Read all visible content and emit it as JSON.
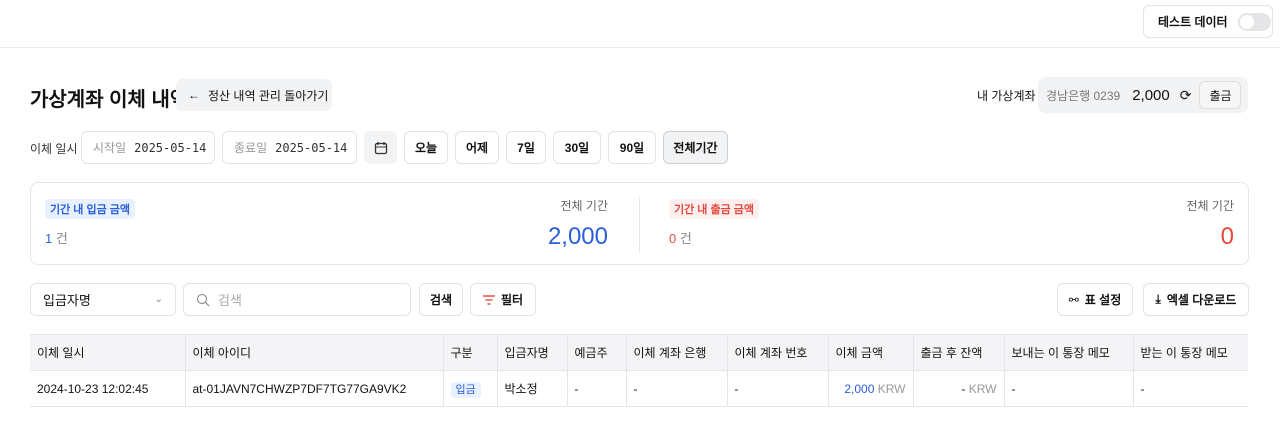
{
  "header": {
    "test_data_label": "테스트 데이터",
    "test_data_enabled": false
  },
  "page": {
    "title": "가상계좌 이체 내역",
    "back_label": "정산 내역 관리 돌아가기"
  },
  "account": {
    "label": "내 가상계좌",
    "bank": "경남은행 0239",
    "balance": "2,000",
    "withdraw_label": "출금"
  },
  "date_filter": {
    "label": "이체 일시",
    "start_placeholder": "시작일",
    "start_value": "2025-05-14",
    "end_placeholder": "종료일",
    "end_value": "2025-05-14",
    "presets": [
      "오늘",
      "어제",
      "7일",
      "30일",
      "90일",
      "전체기간"
    ],
    "active_preset": "전체기간"
  },
  "summary": {
    "deposit": {
      "badge": "기간 내 입금 금액",
      "count": "1",
      "count_unit": "건",
      "period": "전체 기간",
      "amount": "2,000"
    },
    "withdrawal": {
      "badge": "기간 내 출금 금액",
      "count": "0",
      "count_unit": "건",
      "period": "전체 기간",
      "amount": "0"
    }
  },
  "toolbar": {
    "search_field": "입금자명",
    "search_placeholder": "검색",
    "search_button": "검색",
    "filter_button": "필터",
    "table_settings": "표 설정",
    "excel_download": "엑셀 다운로드"
  },
  "table": {
    "columns": [
      "이체 일시",
      "이체 아이디",
      "구분",
      "입금자명",
      "예금주",
      "이체 계좌 은행",
      "이체 계좌 번호",
      "이체 금액",
      "출금 후 잔액",
      "보내는 이 통장 메모",
      "받는 이 통장 메모"
    ],
    "rows": [
      {
        "datetime": "2024-10-23 12:02:45",
        "id": "at-01JAVN7CHWZP7DF7TG77GA9VK2",
        "type": "입금",
        "depositor": "박소정",
        "holder": "-",
        "bank": "-",
        "account_no": "-",
        "amount": "2,000",
        "amount_currency": "KRW",
        "balance_after": "-",
        "balance_currency": "KRW",
        "sender_memo": "-",
        "receiver_memo": "-"
      }
    ]
  },
  "colors": {
    "deposit": "#2b5fd9",
    "withdrawal": "#e5483e"
  }
}
